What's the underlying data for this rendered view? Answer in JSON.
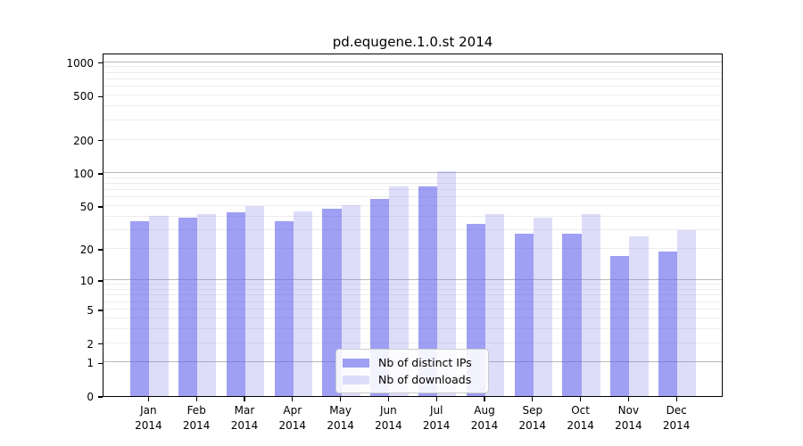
{
  "title": "pd.equgene.1.0.st 2014",
  "chart_data": {
    "type": "bar",
    "title": "pd.equgene.1.0.st 2014",
    "categories": [
      "Jan",
      "Feb",
      "Mar",
      "Apr",
      "May",
      "Jun",
      "Jul",
      "Aug",
      "Sep",
      "Oct",
      "Nov",
      "Dec"
    ],
    "year_label": "2014",
    "series": [
      {
        "name": "Nb of distinct IPs",
        "color": "rgba(100,100,235,0.62)",
        "color_over_white": "#a0a0f0",
        "values": [
          36,
          39,
          44,
          36,
          47,
          58,
          76,
          34,
          28,
          28,
          17,
          19
        ]
      },
      {
        "name": "Nb of downloads",
        "color": "rgba(120,120,235,0.25)",
        "color_over_white": "#dcdcfa",
        "values": [
          41,
          42,
          50,
          45,
          51,
          76,
          104,
          42,
          39,
          42,
          26,
          30
        ]
      }
    ],
    "yscale": "log1p",
    "ylim": [
      0,
      1218
    ],
    "yticks": [
      0,
      1,
      2,
      5,
      10,
      20,
      50,
      100,
      200,
      500,
      1000
    ],
    "minor_gridlines": [
      2,
      3,
      4,
      5,
      6,
      7,
      8,
      9,
      20,
      30,
      40,
      50,
      60,
      70,
      80,
      90,
      200,
      300,
      400,
      500,
      600,
      700,
      800,
      900
    ],
    "major_gridlines": [
      1,
      10,
      100,
      1000
    ],
    "grid": true,
    "legend_position": "lower center"
  }
}
